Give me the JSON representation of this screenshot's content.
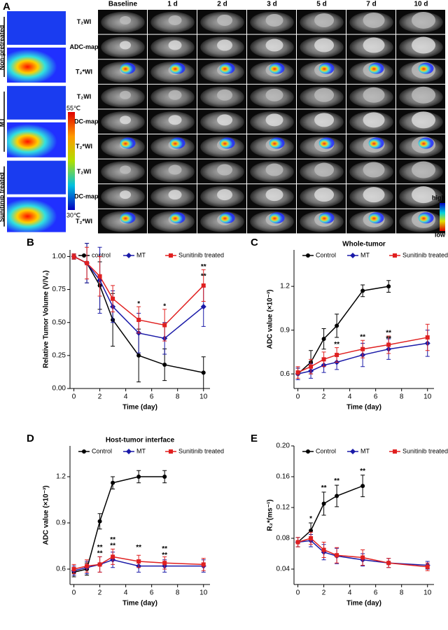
{
  "panel_a": {
    "label": "A",
    "columns": [
      "Baseline",
      "1 d",
      "2 d",
      "3 d",
      "5 d",
      "7 d",
      "10 d"
    ],
    "sequences": [
      "T₂WI",
      "ADC-map",
      "T₂*WI"
    ],
    "groups": [
      "Non-pretreated",
      "MT",
      "Sunitinib treated"
    ],
    "colorbar": {
      "max": "55℃",
      "min": "30℃"
    },
    "scale": {
      "high": "high",
      "low": "low"
    }
  },
  "chart_data": [
    {
      "type": "line",
      "label": "B",
      "xlabel": "Time (day)",
      "ylabel": "Relative Tumor Volume (V/V₀)",
      "x": [
        0,
        1,
        2,
        3,
        5,
        7,
        10
      ],
      "xlim": [
        -0.3,
        10.5
      ],
      "xticks": [
        0,
        2,
        4,
        6,
        8,
        10
      ],
      "ylim": [
        0,
        1.05
      ],
      "yticks": [
        {
          "value": 0,
          "label": "0.00"
        },
        0.25,
        {
          "value": 0.5,
          "label": "0.50"
        },
        0.75,
        {
          "value": 1,
          "label": "1.00"
        }
      ],
      "series": [
        {
          "name": "control",
          "color": "#000000",
          "marker": "circle",
          "values": [
            1.0,
            0.95,
            0.78,
            0.52,
            0.25,
            0.18,
            0.12
          ],
          "errors": [
            0.02,
            0.15,
            0.18,
            0.2,
            0.2,
            0.12,
            0.12
          ]
        },
        {
          "name": "MT",
          "color": "#1a1aa8",
          "marker": "diamond",
          "values": [
            1.0,
            0.95,
            0.82,
            0.62,
            0.42,
            0.38,
            0.62
          ],
          "errors": [
            0.02,
            0.15,
            0.25,
            0.12,
            0.15,
            0.12,
            0.15
          ]
        },
        {
          "name": "Sunitinib treated",
          "color": "#e02020",
          "marker": "square",
          "values": [
            1.0,
            0.95,
            0.85,
            0.68,
            0.52,
            0.48,
            0.78
          ],
          "errors": [
            0.02,
            0.12,
            0.15,
            0.1,
            0.1,
            0.12,
            0.12
          ]
        }
      ],
      "annotations": [
        {
          "text": "*",
          "x": 5,
          "y": 0.64,
          "color": "#e02020"
        },
        {
          "text": "*",
          "x": 7,
          "y": 0.62,
          "color": "#e02020"
        },
        {
          "text": "**",
          "x": 10,
          "y": 0.92,
          "color": "#e02020"
        },
        {
          "text": "**",
          "x": 10,
          "y": 0.85,
          "color": "#1a1aa8"
        }
      ]
    },
    {
      "type": "line",
      "label": "C",
      "title": "Whole-tumor",
      "xlabel": "Time (day)",
      "ylabel": "ADC value (×10⁻³)",
      "x": [
        0,
        1,
        2,
        3,
        5,
        7,
        10
      ],
      "xlim": [
        -0.3,
        10.5
      ],
      "xticks": [
        0,
        2,
        4,
        6,
        8,
        10
      ],
      "ylim": [
        0.5,
        1.45
      ],
      "yticks": [
        0.6,
        0.9,
        1.2
      ],
      "series": [
        {
          "name": "Control",
          "color": "#000000",
          "marker": "circle",
          "values": [
            0.6,
            0.68,
            0.84,
            0.93,
            1.17,
            1.2,
            null
          ],
          "errors": [
            0.04,
            0.08,
            0.07,
            0.08,
            0.04,
            0.04,
            null
          ]
        },
        {
          "name": "MT",
          "color": "#1a1aa8",
          "marker": "diamond",
          "values": [
            0.6,
            0.62,
            0.66,
            0.68,
            0.73,
            0.77,
            0.81
          ],
          "errors": [
            0.04,
            0.05,
            0.05,
            0.05,
            0.08,
            0.07,
            0.09
          ]
        },
        {
          "name": "Sunitinib treated",
          "color": "#e02020",
          "marker": "square",
          "values": [
            0.61,
            0.65,
            0.7,
            0.73,
            0.77,
            0.8,
            0.85
          ],
          "errors": [
            0.04,
            0.05,
            0.05,
            0.05,
            0.06,
            0.06,
            0.09
          ]
        }
      ],
      "annotations": [
        {
          "text": "**",
          "x": 3,
          "y": 0.8,
          "color": "#e02020"
        },
        {
          "text": "**",
          "x": 5,
          "y": 0.85,
          "color": "#e02020"
        },
        {
          "text": "**",
          "x": 7,
          "y": 0.88,
          "color": "#e02020"
        },
        {
          "text": "**",
          "x": 7,
          "y": 0.84,
          "color": "#1a1aa8"
        }
      ]
    },
    {
      "type": "line",
      "label": "D",
      "title": "Host-tumor interface",
      "xlabel": "Time (day)",
      "ylabel": "ADC value (×10⁻³)",
      "x": [
        0,
        1,
        2,
        3,
        5,
        7,
        10
      ],
      "xlim": [
        -0.3,
        10.5
      ],
      "xticks": [
        0,
        2,
        4,
        6,
        8,
        10
      ],
      "ylim": [
        0.5,
        1.4
      ],
      "yticks": [
        0.6,
        0.9,
        1.2
      ],
      "series": [
        {
          "name": "Control",
          "color": "#000000",
          "marker": "circle",
          "values": [
            0.58,
            0.6,
            0.91,
            1.16,
            1.2,
            1.2,
            null
          ],
          "errors": [
            0.03,
            0.04,
            0.05,
            0.04,
            0.04,
            0.04,
            null
          ]
        },
        {
          "name": "MT",
          "color": "#1a1aa8",
          "marker": "diamond",
          "values": [
            0.59,
            0.61,
            0.63,
            0.66,
            0.62,
            0.62,
            0.62
          ],
          "errors": [
            0.03,
            0.04,
            0.05,
            0.05,
            0.04,
            0.04,
            0.04
          ]
        },
        {
          "name": "Sunitinib treated",
          "color": "#e02020",
          "marker": "square",
          "values": [
            0.6,
            0.62,
            0.63,
            0.68,
            0.65,
            0.64,
            0.63
          ],
          "errors": [
            0.03,
            0.04,
            0.05,
            0.05,
            0.04,
            0.04,
            0.04
          ]
        }
      ],
      "annotations": [
        {
          "text": "**",
          "x": 2,
          "y": 0.74,
          "color": "#1a1aa8"
        },
        {
          "text": "**",
          "x": 2,
          "y": 0.7,
          "color": "#e02020"
        },
        {
          "text": "**",
          "x": 3,
          "y": 0.79,
          "color": "#1a1aa8"
        },
        {
          "text": "**",
          "x": 3,
          "y": 0.75,
          "color": "#e02020"
        },
        {
          "text": "**",
          "x": 5,
          "y": 0.74,
          "color": "#e02020"
        },
        {
          "text": "**",
          "x": 7,
          "y": 0.73,
          "color": "#e02020"
        },
        {
          "text": "**",
          "x": 7,
          "y": 0.69,
          "color": "#1a1aa8"
        }
      ]
    },
    {
      "type": "line",
      "label": "E",
      "xlabel": "Time (day)",
      "ylabel": "R₂*(ms⁻¹)",
      "x": [
        0,
        1,
        2,
        3,
        5,
        7,
        10
      ],
      "xlim": [
        -0.3,
        10.5
      ],
      "xticks": [
        0,
        2,
        4,
        6,
        8,
        10
      ],
      "ylim": [
        0.02,
        0.2
      ],
      "yticks": [
        0.04,
        0.08,
        0.12,
        0.16,
        {
          "value": 0.2,
          "label": "0.20"
        }
      ],
      "series": [
        {
          "name": "Control",
          "color": "#000000",
          "marker": "circle",
          "values": [
            0.075,
            0.09,
            0.125,
            0.135,
            0.148,
            null,
            null
          ],
          "errors": [
            0.006,
            0.01,
            0.015,
            0.014,
            0.014,
            null,
            null
          ]
        },
        {
          "name": "MT",
          "color": "#1a1aa8",
          "marker": "diamond",
          "values": [
            0.075,
            0.077,
            0.062,
            0.057,
            0.052,
            0.048,
            0.045
          ],
          "errors": [
            0.006,
            0.008,
            0.01,
            0.01,
            0.008,
            0.006,
            0.005
          ]
        },
        {
          "name": "Sunitinib treated",
          "color": "#e02020",
          "marker": "square",
          "values": [
            0.075,
            0.08,
            0.065,
            0.058,
            0.055,
            0.048,
            0.043
          ],
          "errors": [
            0.006,
            0.008,
            0.01,
            0.01,
            0.01,
            0.006,
            0.005
          ]
        }
      ],
      "annotations": [
        {
          "text": "*",
          "x": 1,
          "y": 0.105,
          "color": "#000000"
        },
        {
          "text": "**",
          "x": 2,
          "y": 0.145,
          "color": "#000000"
        },
        {
          "text": "**",
          "x": 3,
          "y": 0.154,
          "color": "#000000"
        },
        {
          "text": "**",
          "x": 5,
          "y": 0.167,
          "color": "#000000"
        }
      ]
    }
  ]
}
